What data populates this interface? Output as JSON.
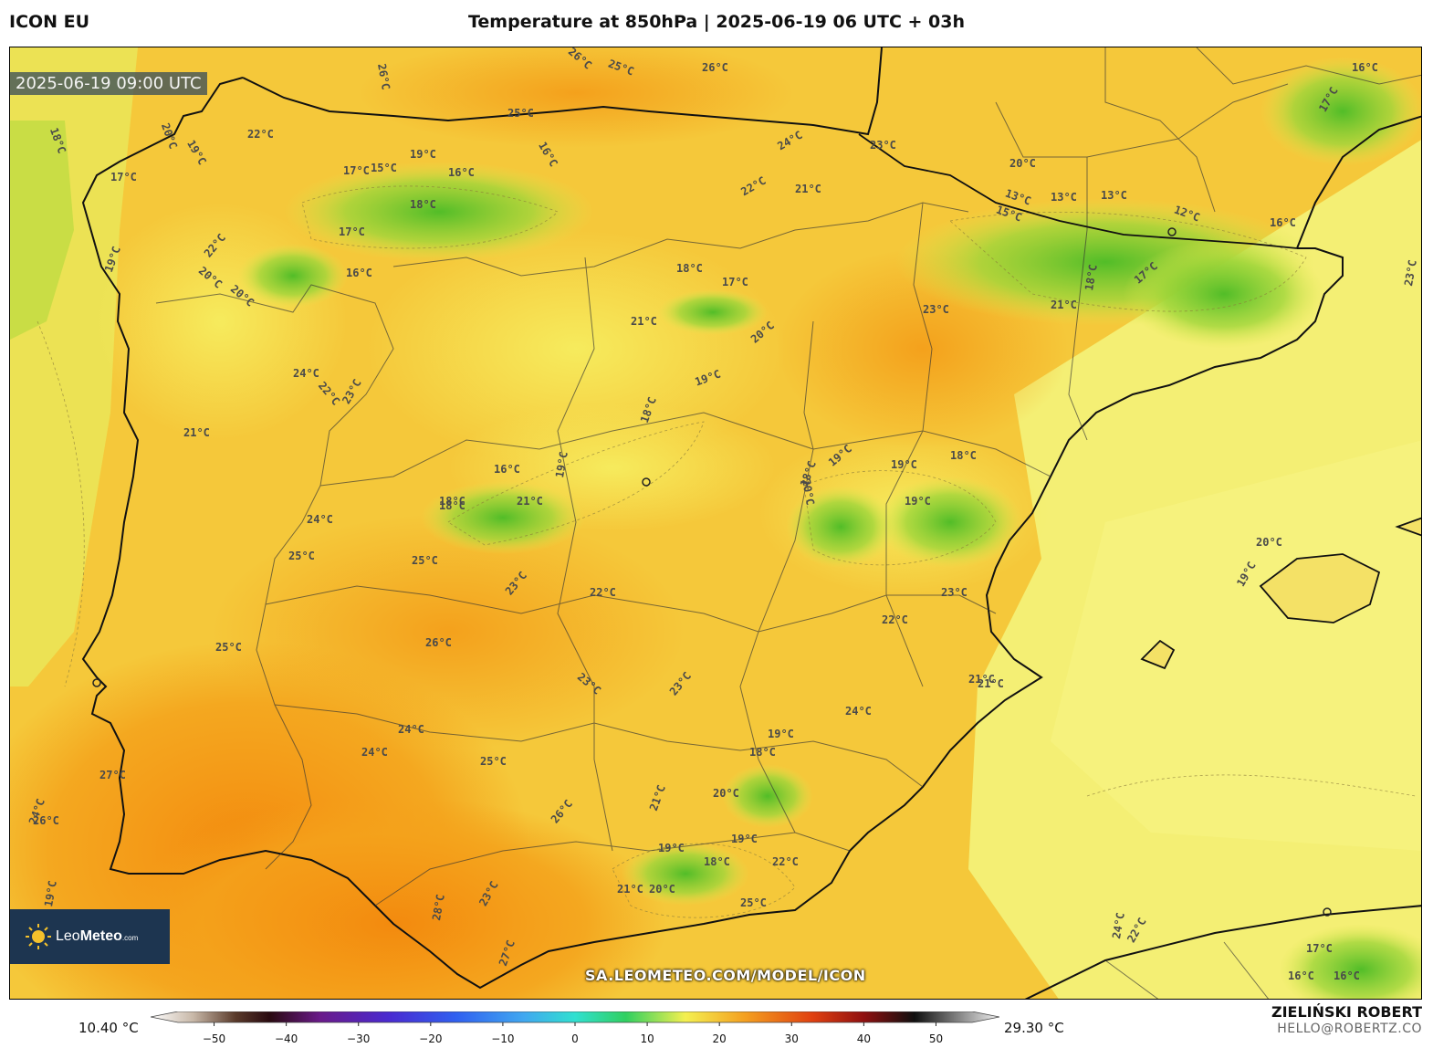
{
  "header": {
    "model": "ICON EU",
    "title": "Temperature at 850hPa | 2025-06-19 06 UTC + 03h"
  },
  "map": {
    "valid_time": "2025-06-19 09:00 UTC",
    "source_url": "SA.LEOMETEO.COM/MODEL/ICON",
    "logo": {
      "name": "Leo",
      "bold": "Meteo",
      "suffix": ".com",
      "icon": "sun-icon"
    },
    "contour_labels": [
      "18°C",
      "20°C",
      "17°C",
      "19°C",
      "22°C",
      "26°C",
      "26°C",
      "25°C",
      "26°C",
      "25°C",
      "17°C",
      "15°C",
      "19°C",
      "16°C",
      "16°C",
      "18°C",
      "17°C",
      "22°C",
      "16°C",
      "19°C",
      "20°C",
      "20°C",
      "24°C",
      "22°C",
      "21°C",
      "23°C",
      "20°C",
      "13°C",
      "13°C",
      "13°C",
      "12°C",
      "15°C",
      "16°C",
      "18°C",
      "17°C",
      "21°C",
      "23°C",
      "18°C",
      "17°C",
      "21°C",
      "20°C",
      "24°C",
      "22°C",
      "23°C",
      "21°C",
      "18°C",
      "19°C",
      "18°C",
      "16°C",
      "18°C",
      "21°C",
      "19°C",
      "18°C",
      "19°C",
      "19°C",
      "18°C",
      "20°C",
      "19°C",
      "24°C",
      "25°C",
      "25°C",
      "23°C",
      "22°C",
      "23°C",
      "22°C",
      "21°C",
      "25°C",
      "26°C",
      "23°C",
      "23°C",
      "24°C",
      "24°C",
      "24°C",
      "25°C",
      "27°C",
      "26°C",
      "24°C",
      "18°C",
      "19°C",
      "20°C",
      "21°C",
      "26°C",
      "19°C",
      "18°C",
      "19°C",
      "22°C",
      "21°C",
      "20°C",
      "25°C",
      "28°C",
      "23°C",
      "27°C",
      "19°C",
      "20°C",
      "19°C",
      "24°C",
      "22°C",
      "17°C",
      "16°C",
      "16°C",
      "16°C",
      "17°C",
      "21°C",
      "23°C"
    ],
    "colors": {
      "frame": "#000000",
      "warm_orange": "#f39a14",
      "yellow": "#f7e25a",
      "green": "#5fc12c",
      "sea_light": "#f3ef76"
    }
  },
  "legend": {
    "min_label": "10.40 °C",
    "max_label": "29.30 °C",
    "ticks": [
      "−50",
      "−40",
      "−30",
      "−20",
      "−10",
      "0",
      "10",
      "20",
      "30",
      "40",
      "50"
    ],
    "range": [
      -55,
      55
    ]
  },
  "credit": {
    "author": "ZIELIŃSKI ROBERT",
    "email": "HELLO@ROBERTZ.CO"
  }
}
